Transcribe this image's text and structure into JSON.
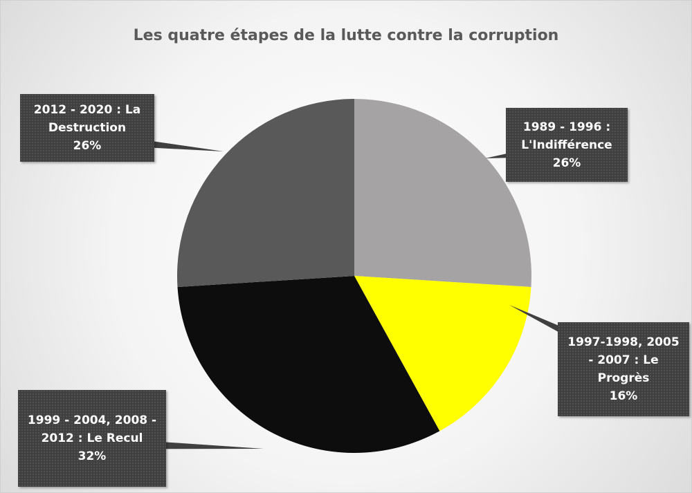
{
  "chart_data": {
    "type": "pie",
    "title": "Les quatre étapes de la lutte contre la corruption",
    "categories": [
      "1989 - 1996 : L'Indifférence",
      "1997-1998, 2005 - 2007 : Le Progrès",
      "1999 - 2004, 2008 - 2012 : Le Recul",
      "2012 - 2020 : La Destruction"
    ],
    "values": [
      26,
      16,
      32,
      26
    ],
    "value_labels": [
      "26%",
      "16%",
      "32%",
      "26%"
    ],
    "colors": [
      "#a5a3a3",
      "#ffff00",
      "#0d0d0d",
      "#595959"
    ]
  }
}
